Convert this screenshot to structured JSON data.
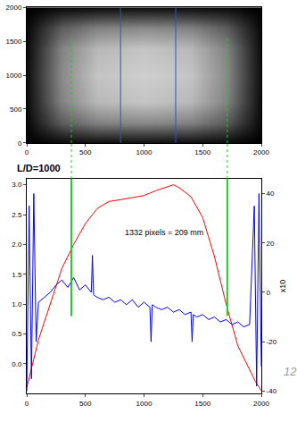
{
  "chart_data": [
    {
      "type": "heatmap",
      "x": [
        0,
        300,
        600,
        1000,
        1400,
        1700,
        2000
      ],
      "y": [
        0,
        300,
        600,
        1000,
        1400,
        1700,
        2000
      ],
      "z": [
        [
          0,
          0.03,
          0.04,
          0.05,
          0.04,
          0.03,
          0
        ],
        [
          0.03,
          0.36,
          0.51,
          0.54,
          0.51,
          0.36,
          0.03
        ],
        [
          0.04,
          0.51,
          0.72,
          0.77,
          0.72,
          0.51,
          0.04
        ],
        [
          0.05,
          0.54,
          0.77,
          0.81,
          0.77,
          0.54,
          0.05
        ],
        [
          0.04,
          0.51,
          0.72,
          0.77,
          0.72,
          0.51,
          0.04
        ],
        [
          0.03,
          0.36,
          0.51,
          0.54,
          0.51,
          0.36,
          0.03
        ],
        [
          0,
          0.03,
          0.04,
          0.05,
          0.04,
          0.03,
          0
        ]
      ],
      "zlim": [
        0,
        1
      ],
      "xlim": [
        0,
        2000
      ],
      "ylim": [
        0,
        2000
      ],
      "xticks": [
        0,
        500,
        1000,
        1500,
        2000
      ],
      "yticks": [
        0,
        500,
        1000,
        1500,
        2000
      ],
      "lines": [
        {
          "x": 800,
          "color": "#3050c8"
        },
        {
          "x": 1270,
          "color": "#3050c8"
        }
      ],
      "green_lines": {
        "x": [
          380,
          1710
        ],
        "y": [
          0,
          1570
        ],
        "color": "#22cc22"
      }
    },
    {
      "type": "line",
      "annotations": [
        {
          "text": "L/D=1000"
        },
        {
          "text": "1332 pixels = 209 mm",
          "x": 820,
          "y": 2.2
        },
        {
          "text": "12"
        }
      ],
      "y2_label": "x10",
      "xlim": [
        0,
        2000
      ],
      "xticks": [
        0,
        500,
        1000,
        1500,
        2000
      ],
      "ylim": [
        -0.5,
        3.1
      ],
      "yticks": [
        {
          "value": 0,
          "label": "0.0"
        },
        0.5,
        {
          "value": 1,
          "label": "1.0"
        },
        1.5,
        {
          "value": 2,
          "label": "2.0"
        },
        2.5,
        {
          "value": 3,
          "label": "3.0"
        }
      ],
      "y2lim": [
        -41,
        46
      ],
      "y2ticks": [
        -40,
        -20,
        0,
        20,
        40
      ],
      "green_lines": {
        "x": [
          380,
          1710
        ],
        "y": [
          0.8,
          3.1
        ],
        "color": "#22cc22"
      },
      "series": [
        {
          "color": "#ff0000",
          "x": [
            0,
            50,
            100,
            200,
            300,
            400,
            500,
            600,
            700,
            800,
            900,
            1000,
            1100,
            1200,
            1250,
            1300,
            1400,
            1500,
            1600,
            1700,
            1800,
            1900,
            1950,
            2000
          ],
          "values": [
            -0.4,
            0.0,
            0.4,
            1.0,
            1.6,
            2.0,
            2.35,
            2.6,
            2.72,
            2.75,
            2.78,
            2.82,
            2.9,
            2.97,
            3.0,
            2.95,
            2.8,
            2.45,
            1.8,
            1.0,
            0.3,
            -0.1,
            -0.3,
            -0.45
          ]
        },
        {
          "color": "#0000ff",
          "axis": "y2",
          "x": [
            0,
            20,
            40,
            60,
            80,
            100,
            150,
            200,
            250,
            300,
            350,
            400,
            450,
            500,
            550,
            560,
            570,
            600,
            650,
            700,
            750,
            800,
            850,
            900,
            950,
            1000,
            1050,
            1060,
            1070,
            1100,
            1150,
            1200,
            1250,
            1300,
            1350,
            1400,
            1410,
            1420,
            1450,
            1500,
            1550,
            1600,
            1650,
            1700,
            1750,
            1800,
            1850,
            1900,
            1940,
            1960,
            1980,
            2000
          ],
          "values": [
            -40,
            35,
            -35,
            40,
            -20,
            -4,
            -2,
            0,
            3,
            5,
            2,
            6,
            1,
            3,
            0,
            15,
            -1,
            -2,
            -3,
            -2,
            -4,
            -3,
            -5,
            -3,
            -6,
            -4,
            -6,
            -20,
            -5,
            -6,
            -7,
            -6,
            -8,
            -7,
            -9,
            -8,
            -20,
            -9,
            -10,
            -9,
            -11,
            -10,
            -12,
            -11,
            -13,
            -12,
            -14,
            -13,
            35,
            -38,
            40,
            -30
          ]
        }
      ]
    }
  ]
}
